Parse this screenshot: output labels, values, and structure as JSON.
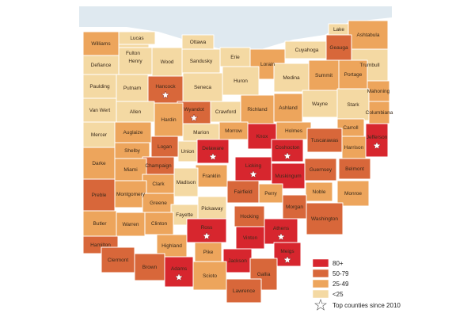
{
  "colors": {
    "c80": "#d7262e",
    "c50": "#d8673a",
    "c25": "#eda55c",
    "c0": "#f4d9a3"
  },
  "legend": {
    "items": [
      {
        "label": "80+",
        "color": "#d7262e"
      },
      {
        "label": "50-79",
        "color": "#d8673a"
      },
      {
        "label": "25-49",
        "color": "#eda55c"
      },
      {
        "label": "<25",
        "color": "#f4d9a3"
      }
    ],
    "star_label": "Top counties since 2010"
  },
  "counties": [
    {
      "name": "Lucas",
      "cat": "c0"
    },
    {
      "name": "Fulton",
      "cat": "c0"
    },
    {
      "name": "Williams",
      "cat": "c25"
    },
    {
      "name": "Ottawa",
      "cat": "c0"
    },
    {
      "name": "Lake",
      "cat": "c0"
    },
    {
      "name": "Ashtabula",
      "cat": "c25"
    },
    {
      "name": "Cuyahoga",
      "cat": "c0"
    },
    {
      "name": "Geauga",
      "cat": "c50"
    },
    {
      "name": "Defiance",
      "cat": "c0"
    },
    {
      "name": "Henry",
      "cat": "c0"
    },
    {
      "name": "Wood",
      "cat": "c0"
    },
    {
      "name": "Sandusky",
      "cat": "c0"
    },
    {
      "name": "Erie",
      "cat": "c0"
    },
    {
      "name": "Lorain",
      "cat": "c25"
    },
    {
      "name": "Trumbull",
      "cat": "c0"
    },
    {
      "name": "Paulding",
      "cat": "c0"
    },
    {
      "name": "Putnam",
      "cat": "c0"
    },
    {
      "name": "Hancock",
      "cat": "c50",
      "star": true
    },
    {
      "name": "Seneca",
      "cat": "c0"
    },
    {
      "name": "Huron",
      "cat": "c0"
    },
    {
      "name": "Medina",
      "cat": "c0"
    },
    {
      "name": "Summit",
      "cat": "c25"
    },
    {
      "name": "Portage",
      "cat": "c25"
    },
    {
      "name": "Mahoning",
      "cat": "c25"
    },
    {
      "name": "Van Wert",
      "cat": "c0"
    },
    {
      "name": "Wyandot",
      "cat": "c50",
      "star": true
    },
    {
      "name": "Crawford",
      "cat": "c0"
    },
    {
      "name": "Richland",
      "cat": "c25"
    },
    {
      "name": "Ashland",
      "cat": "c25"
    },
    {
      "name": "Wayne",
      "cat": "c0"
    },
    {
      "name": "Stark",
      "cat": "c0"
    },
    {
      "name": "Columbiana",
      "cat": "c25"
    },
    {
      "name": "Allen",
      "cat": "c0"
    },
    {
      "name": "Hardin",
      "cat": "c25"
    },
    {
      "name": "Marion",
      "cat": "c0"
    },
    {
      "name": "Morrow",
      "cat": "c25"
    },
    {
      "name": "Knox",
      "cat": "c80"
    },
    {
      "name": "Holmes",
      "cat": "c25"
    },
    {
      "name": "Carroll",
      "cat": "c25"
    },
    {
      "name": "Mercer",
      "cat": "c0"
    },
    {
      "name": "Auglaize",
      "cat": "c25"
    },
    {
      "name": "Logan",
      "cat": "c50"
    },
    {
      "name": "Union",
      "cat": "c0"
    },
    {
      "name": "Delaware",
      "cat": "c80",
      "star": true
    },
    {
      "name": "Licking",
      "cat": "c80",
      "star": true
    },
    {
      "name": "Coshocton",
      "cat": "c80",
      "star": true
    },
    {
      "name": "Tuscarawas",
      "cat": "c50"
    },
    {
      "name": "Harrison",
      "cat": "c25"
    },
    {
      "name": "Jefferson",
      "cat": "c80",
      "star": true
    },
    {
      "name": "Shelby",
      "cat": "c25"
    },
    {
      "name": "Champaign",
      "cat": "c50"
    },
    {
      "name": "Franklin",
      "cat": "c25"
    },
    {
      "name": "Muskingum",
      "cat": "c80"
    },
    {
      "name": "Guernsey",
      "cat": "c50"
    },
    {
      "name": "Belmont",
      "cat": "c50"
    },
    {
      "name": "Darke",
      "cat": "c25"
    },
    {
      "name": "Miami",
      "cat": "c25"
    },
    {
      "name": "Clark",
      "cat": "c25"
    },
    {
      "name": "Madison",
      "cat": "c0"
    },
    {
      "name": "Fairfield",
      "cat": "c50"
    },
    {
      "name": "Perry",
      "cat": "c25"
    },
    {
      "name": "Noble",
      "cat": "c25"
    },
    {
      "name": "Monroe",
      "cat": "c25"
    },
    {
      "name": "Preble",
      "cat": "c50"
    },
    {
      "name": "Montgomery",
      "cat": "c25"
    },
    {
      "name": "Greene",
      "cat": "c25"
    },
    {
      "name": "Fayette",
      "cat": "c0"
    },
    {
      "name": "Pickaway",
      "cat": "c0"
    },
    {
      "name": "Hocking",
      "cat": "c50"
    },
    {
      "name": "Morgan",
      "cat": "c50"
    },
    {
      "name": "Washington",
      "cat": "c50"
    },
    {
      "name": "Butler",
      "cat": "c25"
    },
    {
      "name": "Warren",
      "cat": "c25"
    },
    {
      "name": "Clinton",
      "cat": "c25"
    },
    {
      "name": "Ross",
      "cat": "c80",
      "star": true
    },
    {
      "name": "Vinton",
      "cat": "c80"
    },
    {
      "name": "Athens",
      "cat": "c80",
      "star": true
    },
    {
      "name": "Hamilton",
      "cat": "c50"
    },
    {
      "name": "Highland",
      "cat": "c25"
    },
    {
      "name": "Pike",
      "cat": "c25"
    },
    {
      "name": "Jackson",
      "cat": "c80"
    },
    {
      "name": "Meigs",
      "cat": "c80",
      "star": true
    },
    {
      "name": "Clermont",
      "cat": "c50"
    },
    {
      "name": "Brown",
      "cat": "c50"
    },
    {
      "name": "Adams",
      "cat": "c80",
      "star": true
    },
    {
      "name": "Scioto",
      "cat": "c25"
    },
    {
      "name": "Gallia",
      "cat": "c50"
    },
    {
      "name": "Lawrence",
      "cat": "c50"
    }
  ]
}
